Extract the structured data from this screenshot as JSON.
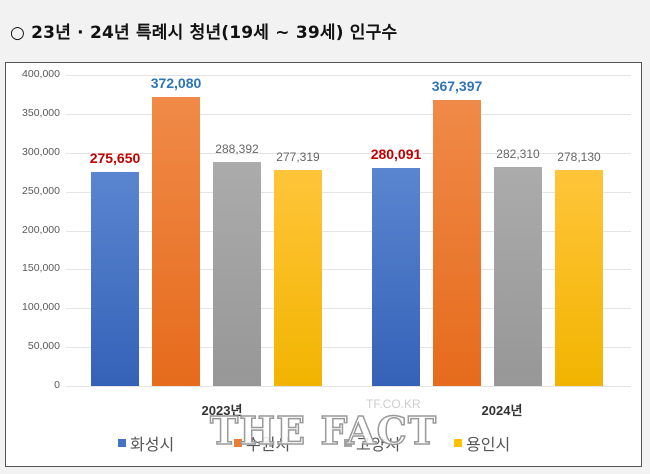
{
  "header": {
    "title": "○ 23년 · 24년 특례시 청년(19세 ~ 39세) 인구수"
  },
  "chart_data": {
    "type": "bar",
    "title": "23년 · 24년 특례시 청년(19세 ~ 39세) 인구수",
    "categories": [
      "2023년",
      "2024년"
    ],
    "series": [
      {
        "name": "화성시",
        "color": "#4472c4",
        "values": [
          275650,
          280091
        ]
      },
      {
        "name": "수원시",
        "color": "#ed7d31",
        "values": [
          372080,
          367397
        ]
      },
      {
        "name": "고양시",
        "color": "#a5a5a5",
        "values": [
          288392,
          282310
        ]
      },
      {
        "name": "용인시",
        "color": "#ffc000",
        "values": [
          277319,
          278130
        ]
      }
    ],
    "data_labels": {
      "2023년": [
        "275,650",
        "372,080",
        "288,392",
        "277,319"
      ],
      "2024년": [
        "280,091",
        "367,397",
        "282,310",
        "278,130"
      ]
    },
    "label_colors": [
      "#c00000",
      "#2e75b6",
      "#666666",
      "#666666"
    ],
    "yticks": [
      "0",
      "50,000",
      "100,000",
      "150,000",
      "200,000",
      "250,000",
      "300,000",
      "350,000",
      "400,000"
    ],
    "ylim": [
      0,
      400000
    ],
    "xlabel": "",
    "ylabel": "",
    "grid": true,
    "legend_position": "bottom"
  },
  "watermark": {
    "main": "THE FACT",
    "sub": "TF.CO.KR"
  }
}
